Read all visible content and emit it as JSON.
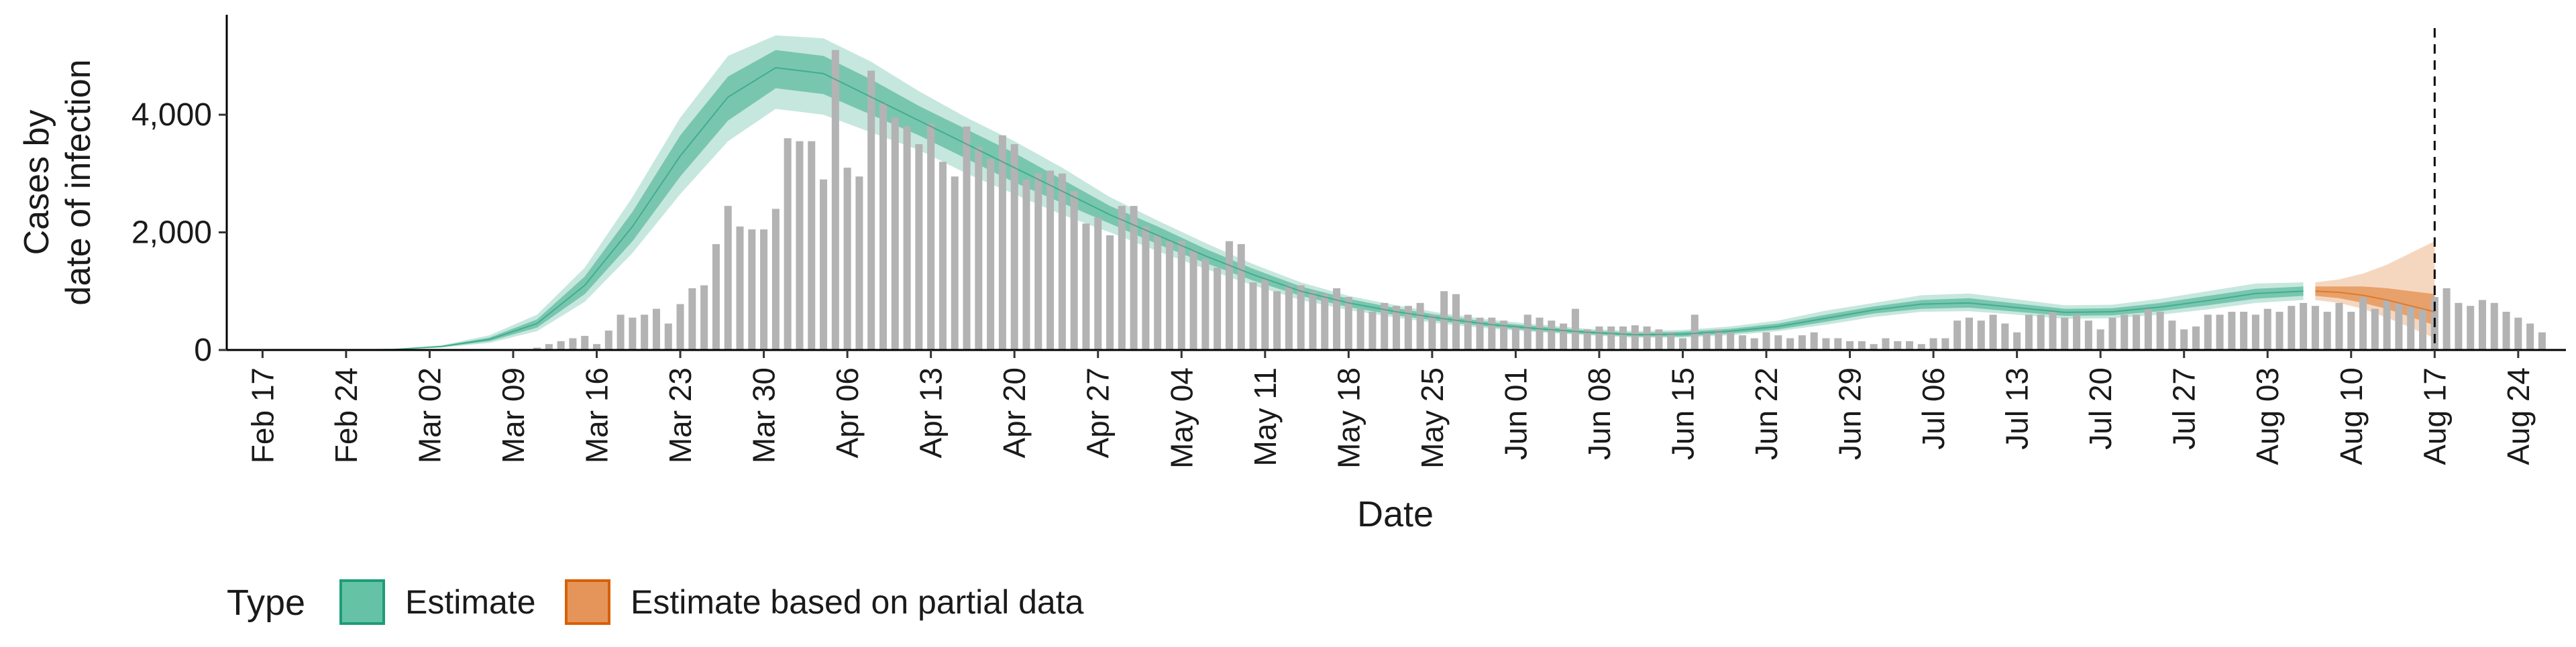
{
  "chart_data": {
    "type": "bar",
    "title": "",
    "xlabel": "Date",
    "ylabel_lines": [
      "Cases by",
      "date of infection"
    ],
    "yticks": [
      0,
      2000,
      4000
    ],
    "ytick_labels": [
      "0",
      "2,000",
      "4,000"
    ],
    "ylim": [
      0,
      5700
    ],
    "xlim": [
      "2020-02-14",
      "2020-08-28"
    ],
    "xticks": [
      "2020-02-17",
      "2020-02-24",
      "2020-03-02",
      "2020-03-09",
      "2020-03-16",
      "2020-03-23",
      "2020-03-30",
      "2020-04-06",
      "2020-04-13",
      "2020-04-20",
      "2020-04-27",
      "2020-05-04",
      "2020-05-11",
      "2020-05-18",
      "2020-05-25",
      "2020-06-01",
      "2020-06-08",
      "2020-06-15",
      "2020-06-22",
      "2020-06-29",
      "2020-07-06",
      "2020-07-13",
      "2020-07-20",
      "2020-07-27",
      "2020-08-03",
      "2020-08-10",
      "2020-08-17",
      "2020-08-24"
    ],
    "xtick_labels": [
      "Feb 17",
      "Feb 24",
      "Mar 02",
      "Mar 09",
      "Mar 16",
      "Mar 23",
      "Mar 30",
      "Apr 06",
      "Apr 13",
      "Apr 20",
      "Apr 27",
      "May 04",
      "May 11",
      "May 18",
      "May 25",
      "Jun 01",
      "Jun 08",
      "Jun 15",
      "Jun 22",
      "Jun 29",
      "Jul 06",
      "Jul 13",
      "Jul 20",
      "Jul 27",
      "Aug 03",
      "Aug 10",
      "Aug 17",
      "Aug 24"
    ],
    "reference_line": "2020-08-17",
    "bars": {
      "start": "2020-03-11",
      "values": [
        40,
        100,
        150,
        200,
        240,
        100,
        330,
        600,
        550,
        600,
        700,
        450,
        780,
        1050,
        1100,
        1800,
        2450,
        2100,
        2050,
        2050,
        2400,
        3600,
        3550,
        3550,
        2900,
        5100,
        3100,
        2950,
        4750,
        4200,
        3950,
        3800,
        3500,
        3850,
        3200,
        2950,
        3800,
        3450,
        3250,
        3650,
        3500,
        2900,
        3000,
        3050,
        3000,
        2700,
        2150,
        2250,
        1950,
        2450,
        2450,
        2100,
        1950,
        1850,
        1850,
        1700,
        1550,
        1400,
        1850,
        1800,
        1150,
        1200,
        1000,
        1100,
        1100,
        1000,
        950,
        1050,
        900,
        700,
        650,
        800,
        750,
        750,
        800,
        600,
        1000,
        950,
        600,
        550,
        550,
        500,
        400,
        600,
        550,
        500,
        450,
        700,
        350,
        400,
        400,
        400,
        420,
        400,
        350,
        300,
        200,
        600,
        300,
        350,
        300,
        250,
        200,
        300,
        250,
        200,
        250,
        300,
        200,
        200,
        150,
        150,
        100,
        200,
        150,
        150,
        100,
        200,
        200,
        500,
        550,
        500,
        600,
        450,
        300,
        600,
        600,
        650,
        550,
        600,
        500,
        350,
        550,
        600,
        600,
        700,
        650,
        500,
        350,
        400,
        600,
        600,
        650,
        650,
        600,
        700,
        650,
        750,
        800,
        750,
        650,
        800,
        650,
        900,
        700,
        850,
        800,
        750,
        700,
        900,
        1050,
        800,
        750,
        850,
        800,
        650,
        550,
        450,
        300
      ]
    },
    "series": [
      {
        "name": "Estimate",
        "type_key": "estimate",
        "x": [
          "2020-02-20",
          "2020-02-24",
          "2020-02-28",
          "2020-03-03",
          "2020-03-07",
          "2020-03-11",
          "2020-03-15",
          "2020-03-19",
          "2020-03-23",
          "2020-03-27",
          "2020-03-31",
          "2020-04-04",
          "2020-04-08",
          "2020-04-12",
          "2020-04-16",
          "2020-04-20",
          "2020-04-24",
          "2020-04-28",
          "2020-05-02",
          "2020-05-06",
          "2020-05-10",
          "2020-05-14",
          "2020-05-18",
          "2020-05-22",
          "2020-05-26",
          "2020-05-30",
          "2020-06-03",
          "2020-06-07",
          "2020-06-11",
          "2020-06-15",
          "2020-06-19",
          "2020-06-23",
          "2020-06-27",
          "2020-07-01",
          "2020-07-05",
          "2020-07-09",
          "2020-07-13",
          "2020-07-17",
          "2020-07-21",
          "2020-07-25",
          "2020-07-29",
          "2020-08-02",
          "2020-08-06"
        ],
        "median": [
          0,
          0,
          10,
          60,
          180,
          450,
          1100,
          2100,
          3300,
          4300,
          4800,
          4700,
          4300,
          3900,
          3500,
          3100,
          2700,
          2300,
          1950,
          1600,
          1280,
          1000,
          800,
          650,
          530,
          430,
          360,
          300,
          260,
          270,
          320,
          400,
          540,
          680,
          780,
          800,
          720,
          640,
          650,
          730,
          840,
          960,
          1000
        ],
        "lower_50": [
          0,
          0,
          8,
          50,
          150,
          380,
          950,
          1850,
          2950,
          3900,
          4450,
          4350,
          4000,
          3650,
          3250,
          2850,
          2500,
          2150,
          1800,
          1480,
          1180,
          920,
          730,
          590,
          480,
          390,
          320,
          270,
          230,
          230,
          280,
          350,
          480,
          620,
          700,
          720,
          650,
          580,
          590,
          660,
          760,
          870,
          920
        ],
        "upper_50": [
          0,
          0,
          12,
          70,
          210,
          520,
          1250,
          2350,
          3650,
          4650,
          5100,
          5000,
          4600,
          4150,
          3750,
          3350,
          2900,
          2450,
          2100,
          1720,
          1380,
          1080,
          870,
          710,
          580,
          470,
          400,
          330,
          290,
          310,
          360,
          450,
          600,
          740,
          850,
          880,
          790,
          700,
          710,
          800,
          920,
          1040,
          1080
        ],
        "lower_90": [
          0,
          0,
          5,
          40,
          120,
          320,
          820,
          1650,
          2650,
          3550,
          4100,
          4000,
          3700,
          3400,
          3000,
          2650,
          2300,
          2000,
          1680,
          1380,
          1100,
          850,
          680,
          550,
          440,
          360,
          300,
          250,
          210,
          210,
          250,
          320,
          430,
          560,
          650,
          660,
          600,
          530,
          540,
          600,
          690,
          800,
          850
        ],
        "upper_90": [
          0,
          0,
          15,
          80,
          250,
          600,
          1400,
          2600,
          3950,
          5000,
          5350,
          5300,
          4900,
          4400,
          3950,
          3550,
          3100,
          2600,
          2200,
          1820,
          1460,
          1150,
          920,
          760,
          620,
          510,
          430,
          360,
          320,
          340,
          400,
          500,
          670,
          800,
          930,
          960,
          860,
          760,
          770,
          870,
          1000,
          1130,
          1150
        ]
      },
      {
        "name": "Estimate based on partial data",
        "type_key": "partial",
        "x": [
          "2020-08-07",
          "2020-08-09",
          "2020-08-11",
          "2020-08-13",
          "2020-08-15",
          "2020-08-17"
        ],
        "median": [
          1000,
          980,
          930,
          850,
          750,
          650
        ],
        "lower_50": [
          920,
          880,
          800,
          700,
          560,
          420
        ],
        "upper_50": [
          1080,
          1080,
          1080,
          1050,
          1000,
          950
        ],
        "lower_90": [
          850,
          800,
          700,
          550,
          380,
          200
        ],
        "upper_90": [
          1150,
          1200,
          1300,
          1450,
          1650,
          1850
        ]
      }
    ],
    "legend": {
      "title": "Type",
      "position": "bottom-left",
      "items": [
        {
          "label": "Estimate",
          "type_key": "estimate"
        },
        {
          "label": "Estimate based on partial data",
          "type_key": "partial"
        }
      ]
    },
    "colors": {
      "estimate_fill": "#1b9e77",
      "estimate_key": "#66c2a5",
      "partial_fill": "#d95f02",
      "partial_key": "#e6955a",
      "bars": "#b3b3b3",
      "axis": "#000000"
    }
  }
}
